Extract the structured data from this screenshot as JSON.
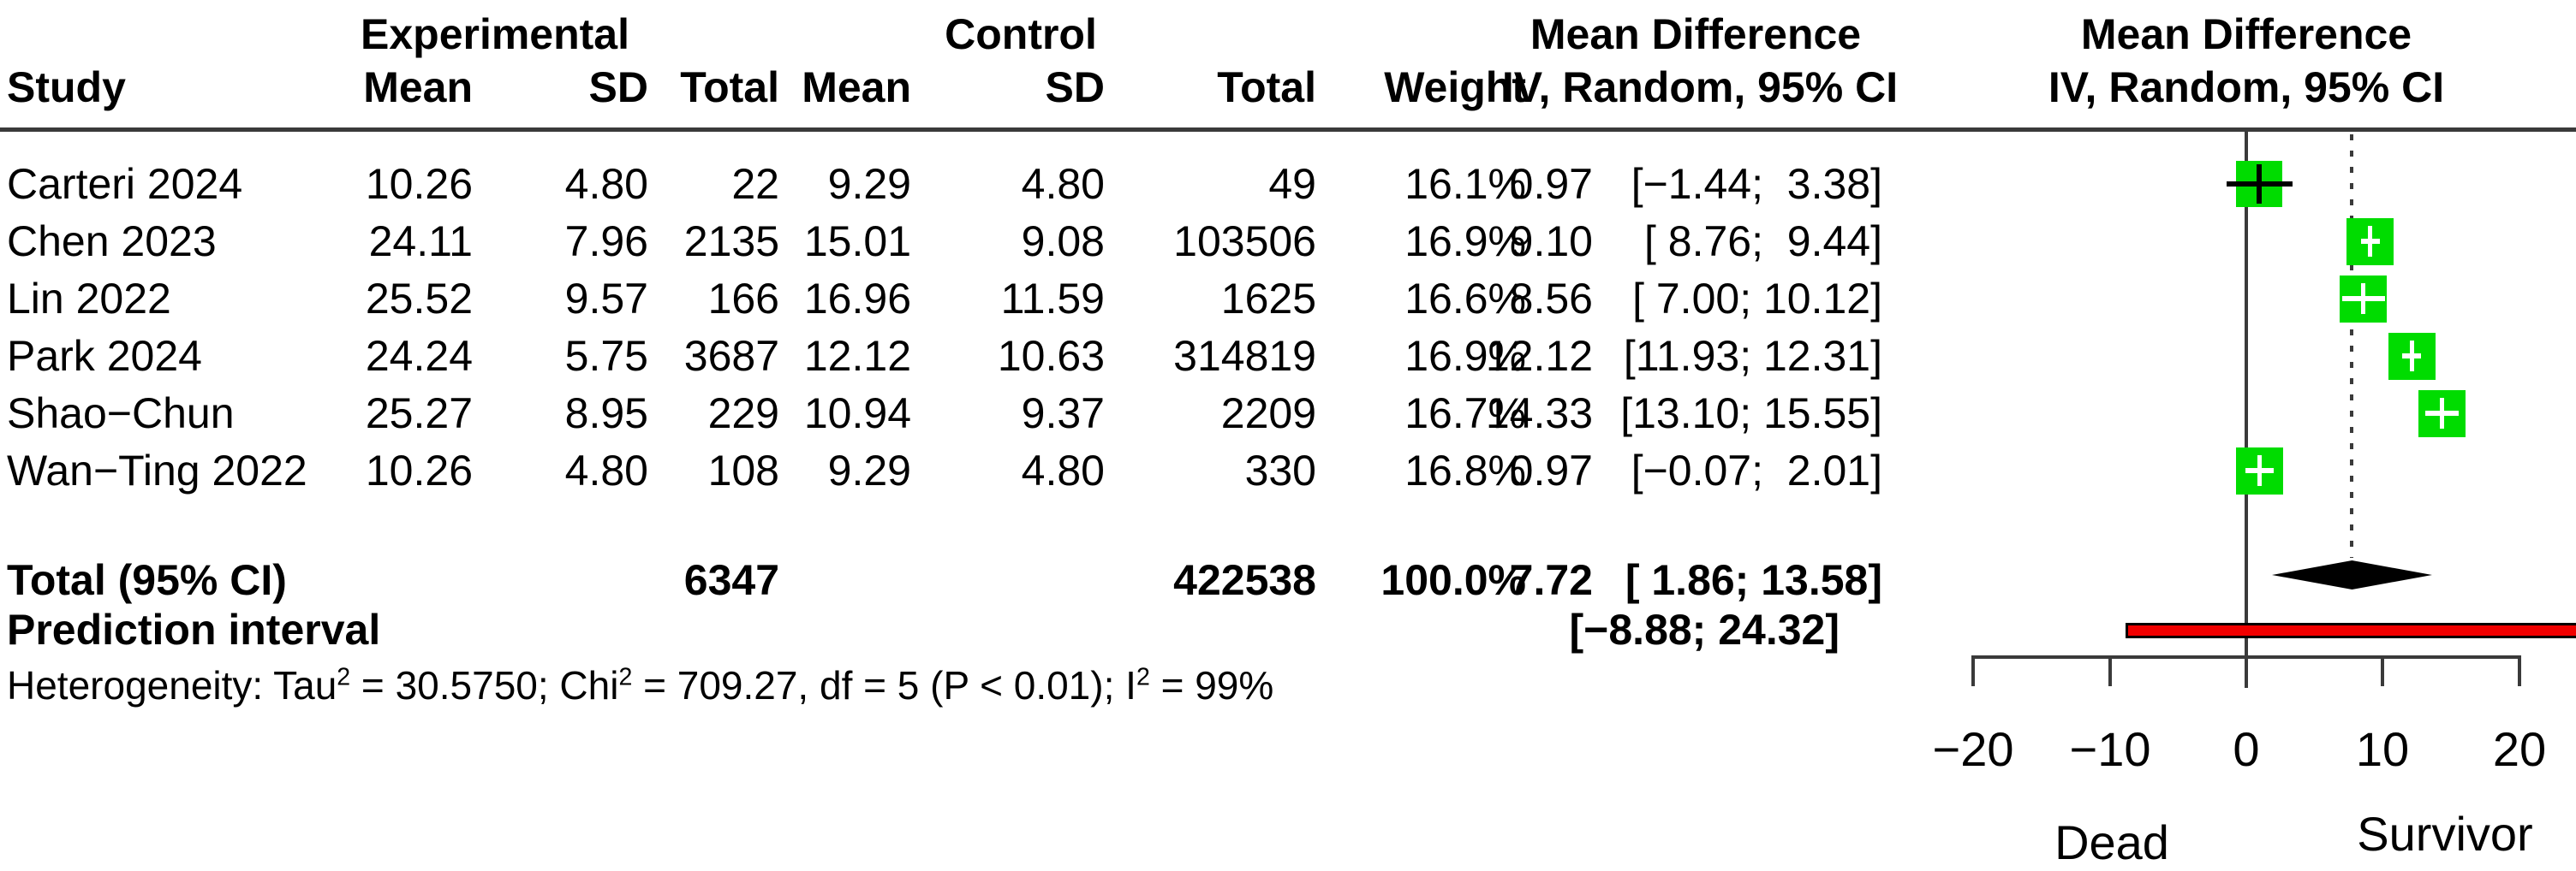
{
  "header": {
    "group_experimental": "Experimental",
    "group_control": "Control",
    "md_col_title": "Mean Difference",
    "md_plot_title": "Mean Difference",
    "study": "Study",
    "mean": "Mean",
    "sd": "SD",
    "total": "Total",
    "weight": "Weight",
    "iv_random": "IV, Random, 95% CI"
  },
  "totals": {
    "label": "Total (95% CI)",
    "total_e": "6347",
    "total_c": "422538",
    "weight": "100.0%",
    "md_text": "7.72",
    "ci_text": "[ 1.86; 13.58]"
  },
  "prediction_row": {
    "label": "Prediction interval",
    "ci_text": "[−8.88; 24.32]"
  },
  "heterogeneity": {
    "segments": [
      {
        "t": "Heterogeneity: Tau"
      },
      {
        "t": "2",
        "sup": true
      },
      {
        "t": " = 30.5750; Chi"
      },
      {
        "t": "2",
        "sup": true
      },
      {
        "t": " = 709.27, df = 5 (P < 0.01); I"
      },
      {
        "t": "2",
        "sup": true
      },
      {
        "t": " = 99%"
      }
    ]
  },
  "colors": {
    "square_green": "#00dc00",
    "bar_red": "#f10000",
    "line_dark": "#3a3a3a",
    "diamond_black": "#000000"
  },
  "chart_data": {
    "type": "forest",
    "title": "Mean Difference, IV, Random, 95% CI",
    "effect_measure": "Mean Difference",
    "model": "IV, Random, 95% CI",
    "studies": [
      {
        "label": "Carteri 2024",
        "mean_e": "10.26",
        "sd_e": "4.80",
        "total_e": "22",
        "mean_c": "9.29",
        "sd_c": "4.80",
        "total_c": "49",
        "weight": "16.1%",
        "weight_pct": 16.1,
        "md": 0.97,
        "ci_low": -1.44,
        "ci_high": 3.38,
        "md_text": "0.97",
        "ci_text": "[−1.44;  3.38]"
      },
      {
        "label": "Chen 2023",
        "mean_e": "24.11",
        "sd_e": "7.96",
        "total_e": "2135",
        "mean_c": "15.01",
        "sd_c": "9.08",
        "total_c": "103506",
        "weight": "16.9%",
        "weight_pct": 16.9,
        "md": 9.1,
        "ci_low": 8.76,
        "ci_high": 9.44,
        "md_text": "9.10",
        "ci_text": "[ 8.76;  9.44]"
      },
      {
        "label": "Lin 2022",
        "mean_e": "25.52",
        "sd_e": "9.57",
        "total_e": "166",
        "mean_c": "16.96",
        "sd_c": "11.59",
        "total_c": "1625",
        "weight": "16.6%",
        "weight_pct": 16.6,
        "md": 8.56,
        "ci_low": 7.0,
        "ci_high": 10.12,
        "md_text": "8.56",
        "ci_text": "[ 7.00; 10.12]"
      },
      {
        "label": "Park 2024",
        "mean_e": "24.24",
        "sd_e": "5.75",
        "total_e": "3687",
        "mean_c": "12.12",
        "sd_c": "10.63",
        "total_c": "314819",
        "weight": "16.9%",
        "weight_pct": 16.9,
        "md": 12.12,
        "ci_low": 11.93,
        "ci_high": 12.31,
        "md_text": "12.12",
        "ci_text": "[11.93; 12.31]"
      },
      {
        "label": "Shao−Chun",
        "mean_e": "25.27",
        "sd_e": "8.95",
        "total_e": "229",
        "mean_c": "10.94",
        "sd_c": "9.37",
        "total_c": "2209",
        "weight": "16.7%",
        "weight_pct": 16.7,
        "md": 14.33,
        "ci_low": 13.1,
        "ci_high": 15.55,
        "md_text": "14.33",
        "ci_text": "[13.10; 15.55]"
      },
      {
        "label": "Wan−Ting 2022",
        "mean_e": "10.26",
        "sd_e": "4.80",
        "total_e": "108",
        "mean_c": "9.29",
        "sd_c": "4.80",
        "total_c": "330",
        "weight": "16.8%",
        "weight_pct": 16.8,
        "md": 0.97,
        "ci_low": -0.07,
        "ci_high": 2.01,
        "md_text": "0.97",
        "ci_text": "[−0.07;  2.01]"
      }
    ],
    "overall": {
      "md": 7.72,
      "ci_low": 1.86,
      "ci_high": 13.58
    },
    "prediction": {
      "ci_low": -8.88,
      "ci_high": 24.32
    },
    "axis": {
      "range": [
        -20,
        20
      ],
      "ticks": [
        -20,
        -10,
        0,
        10,
        20
      ],
      "tick_labels": [
        "−20",
        "−10",
        "0",
        "10",
        "20"
      ],
      "label_left": "Dead",
      "label_right": "Survivor"
    },
    "heterogeneity_text": "Heterogeneity: Tau² = 30.5750; Chi² = 709.27, df = 5 (P < 0.01); I² = 99%"
  }
}
